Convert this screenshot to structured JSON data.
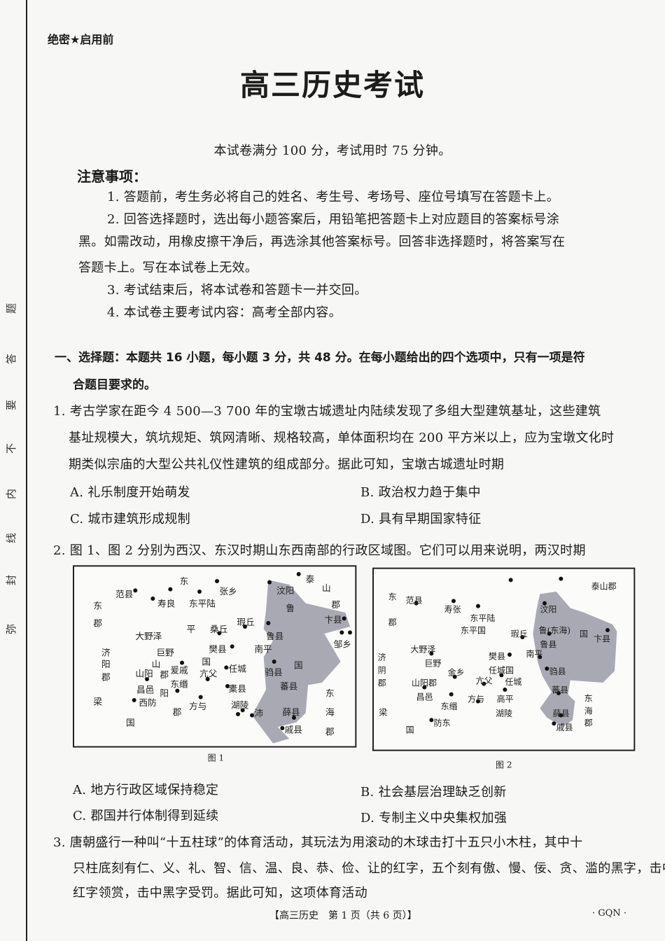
{
  "header": {
    "secret_label": "绝密★启用前",
    "title": "高三历史考试",
    "subtitle": "本试卷满分 100 分，考试用时 75 分钟。"
  },
  "margin_text": [
    "弥",
    "封",
    "线",
    "内",
    "不",
    "要",
    "答",
    "题"
  ],
  "notes": {
    "heading": "注意事项：",
    "lines": [
      "1. 答题前，考生务必将自己的姓名、考生号、考场号、座位号填写在答题卡上。",
      "2. 回答选择题时，选出每小题答案后，用铅笔把答题卡上对应题目的答案标号涂",
      "黑。如需改动，用橡皮擦干净后，再选涂其他答案标号。回答非选择题时，将答案写在",
      "答题卡上。写在本试卷上无效。",
      "3. 考试结束后，将本试卷和答题卡一并交回。",
      "4. 本试卷主要考试内容：高考全部内容。"
    ]
  },
  "section": {
    "line1": "一、选择题：本题共 16 小题，每小题 3 分，共 48 分。在每小题给出的四个选项中，只有一项是符",
    "line2": "合题目要求的。"
  },
  "q1": {
    "lines": [
      "1. 考古学家在距今 4 500—3 700 年的宝墩古城遗址内陆续发现了多组大型建筑基址，这些建筑",
      "基址规模大，筑坑规矩、筑网清晰、规格较高，单体面积均在 200 平方米以上，应为宝墩文化时",
      "期类似宗庙的大型公共礼仪性建筑的组成部分。据此可知，宝墩古城遗址时期"
    ],
    "options": [
      "A. 礼乐制度开始萌发",
      "B. 政治权力趋于集中",
      "C. 城市建筑形成规制",
      "D. 具有早期国家特征"
    ]
  },
  "q2": {
    "lines": [
      "2. 图 1、图 2 分别为西汉、东汉时期山东西南部的行政区域图。它们可以用来说明，两汉时期"
    ],
    "options": [
      "A. 地方行政区域保持稳定",
      "B. 社会基层治理缺乏创新",
      "C. 郡国并行体制得到延续",
      "D. 专制主义中央集权加强"
    ]
  },
  "maps": {
    "fig1": {
      "caption": "图 1",
      "labels": [
        "范县",
        "寿良",
        "东平陆",
        "张乡",
        "东",
        "泰",
        "山",
        "郡",
        "汶阳",
        "鲁",
        "卞县",
        "邹乡",
        "东",
        "郡",
        "平",
        "桑丘",
        "瑕丘",
        "鲁县",
        "大野泽",
        "樊县",
        "南平",
        "济",
        "阳",
        "郡",
        "巨野",
        "山",
        "国",
        "山阳",
        "郡",
        "爰戚",
        "东缗",
        "亢父",
        "任城",
        "驺县",
        "国",
        "昌邑",
        "阳",
        "蕃县",
        "橐县",
        "西防",
        "方与",
        "郡",
        "湖陵",
        "沛",
        "薛县",
        "东",
        "海",
        "郡",
        "戚县",
        "梁",
        "国"
      ]
    },
    "fig2": {
      "caption": "图 2",
      "labels": [
        "泰山郡",
        "东",
        "郡",
        "范县",
        "寿张",
        "东平陆",
        "东平国",
        "汶阳",
        "瑕丘",
        "鲁(东海)",
        "国",
        "卞县",
        "鲁县",
        "大野泽",
        "巨野",
        "济",
        "阴",
        "郡",
        "樊县",
        "南平",
        "金乡",
        "任城国",
        "驺县",
        "山阳郡",
        "亢父",
        "任城",
        "昌邑",
        "东缗",
        "方与",
        "高平",
        "蕃县",
        "梁",
        "湖陵",
        "东",
        "海",
        "郡",
        "薛县",
        "戚县",
        "防东",
        "国"
      ]
    },
    "shade_color": "#8e8e9c"
  },
  "q3": {
    "lines": [
      "3. 唐朝盛行一种叫“十五柱球”的体育活动，其玩法为用滚动的木球击打十五只小木柱，其中十",
      "只柱底刻有仁、义、礼、智、信、温、良、恭、俭、让的红字，五个刻有傲、慢、佞、贪、滥的黑字，击中",
      "红字领赏，击中黑字受罚。据此可知，这项体育活动"
    ]
  },
  "footer": {
    "page": "【高三历史　第 1 页（共 6 页）】",
    "code": "· GQN ·"
  }
}
